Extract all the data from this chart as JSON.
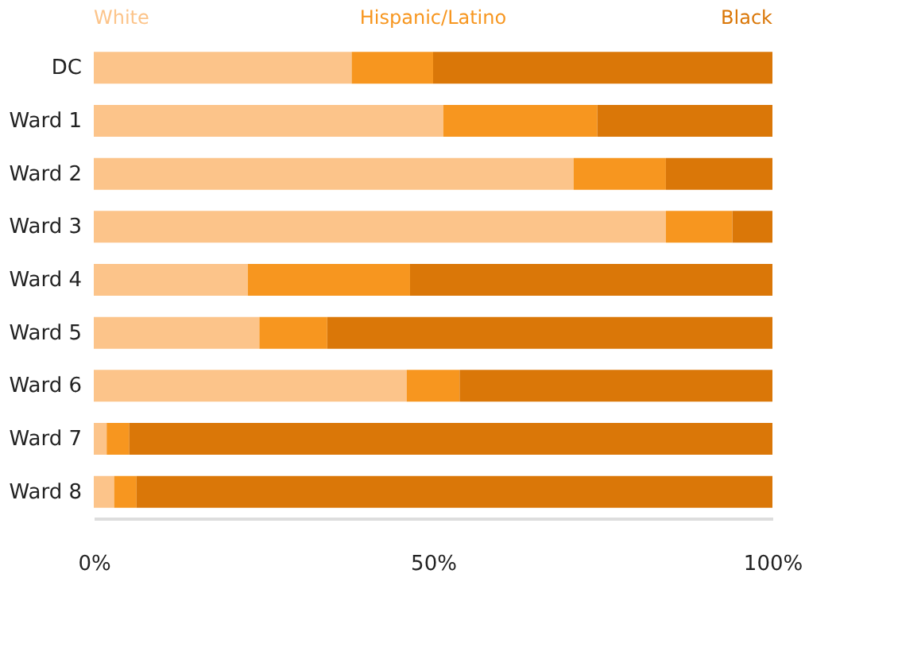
{
  "chart_data": {
    "type": "bar",
    "orientation": "horizontal",
    "stacked": true,
    "categories": [
      "DC",
      "Ward 1",
      "Ward 2",
      "Ward 3",
      "Ward 4",
      "Ward 5",
      "Ward 6",
      "Ward 7",
      "Ward 8"
    ],
    "series": [
      {
        "name": "White",
        "color": "#fcc48a",
        "values": [
          38,
          51.5,
          70.7,
          84.3,
          22.7,
          24.4,
          46.1,
          1.9,
          3
        ]
      },
      {
        "name": "Hispanic/Latino",
        "color": "#f7961f",
        "values": [
          12,
          22.7,
          13.6,
          9.8,
          23.9,
          10,
          7.8,
          3.3,
          3.3
        ]
      },
      {
        "name": "Black",
        "color": "#da7708",
        "values": [
          50,
          25.8,
          15.7,
          5.9,
          53.4,
          65.6,
          46.1,
          94.8,
          93.7
        ]
      }
    ],
    "xlim": [
      0,
      100
    ],
    "xticks": [
      {
        "value": 0,
        "label": "0%"
      },
      {
        "value": 50,
        "label": "50%"
      },
      {
        "value": 100,
        "label": "100%"
      }
    ],
    "legend": "top",
    "grid": false
  }
}
